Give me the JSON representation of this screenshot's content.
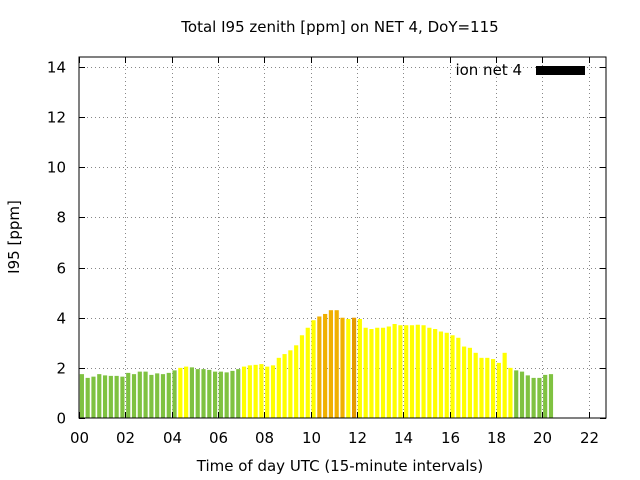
{
  "chart_data": {
    "type": "bar",
    "title": "Total I95 zenith [ppm] on NET 4, DoY=115",
    "xlabel": "Time of day UTC (15-minute intervals)",
    "ylabel": "I95 [ppm]",
    "xlim": [
      0,
      22.75
    ],
    "ylim": [
      0,
      14.4
    ],
    "xticks": [
      0,
      2,
      4,
      6,
      8,
      10,
      12,
      14,
      16,
      18,
      20,
      22
    ],
    "xtick_labels": [
      "00",
      "02",
      "04",
      "06",
      "08",
      "10",
      "12",
      "14",
      "16",
      "18",
      "20",
      "22"
    ],
    "yticks": [
      0,
      2,
      4,
      6,
      8,
      10,
      12,
      14
    ],
    "ytick_labels": [
      "0",
      "2",
      "4",
      "6",
      "8",
      "10",
      "12",
      "14"
    ],
    "grid": true,
    "legend": {
      "label": "ion net 4",
      "color": "#000000",
      "placement": "top-right"
    },
    "interval_hours": 0.25,
    "colors": {
      "G": "#7fc241",
      "Y": "#ffff00",
      "O": "#f0b000",
      "D": "#e59a00"
    },
    "values": [
      1.75,
      1.6,
      1.65,
      1.75,
      1.7,
      1.68,
      1.68,
      1.65,
      1.8,
      1.75,
      1.85,
      1.85,
      1.72,
      1.78,
      1.75,
      1.8,
      1.9,
      2.0,
      2.05,
      2.02,
      1.95,
      1.95,
      1.92,
      1.85,
      1.85,
      1.82,
      1.88,
      1.95,
      2.05,
      2.1,
      2.12,
      2.15,
      2.05,
      2.1,
      2.4,
      2.55,
      2.7,
      2.9,
      3.3,
      3.6,
      3.9,
      4.05,
      4.15,
      4.3,
      4.3,
      4.0,
      3.95,
      4.0,
      3.95,
      3.6,
      3.55,
      3.6,
      3.6,
      3.65,
      3.75,
      3.7,
      3.7,
      3.7,
      3.72,
      3.7,
      3.6,
      3.55,
      3.45,
      3.4,
      3.3,
      3.2,
      2.85,
      2.8,
      2.6,
      2.4,
      2.4,
      2.35,
      2.2,
      2.6,
      2.0,
      1.9,
      1.85,
      1.7,
      1.6,
      1.6,
      1.72,
      1.75
    ],
    "value_colors": [
      "G",
      "G",
      "G",
      "G",
      "G",
      "G",
      "G",
      "G",
      "G",
      "G",
      "G",
      "G",
      "G",
      "G",
      "G",
      "G",
      "G",
      "Y",
      "Y",
      "G",
      "G",
      "G",
      "G",
      "G",
      "G",
      "G",
      "G",
      "G",
      "Y",
      "Y",
      "Y",
      "Y",
      "Y",
      "Y",
      "Y",
      "Y",
      "Y",
      "Y",
      "Y",
      "Y",
      "Y",
      "O",
      "O",
      "O",
      "O",
      "O",
      "Y",
      "D",
      "Y",
      "Y",
      "Y",
      "Y",
      "Y",
      "Y",
      "Y",
      "Y",
      "Y",
      "Y",
      "Y",
      "Y",
      "Y",
      "Y",
      "Y",
      "Y",
      "Y",
      "Y",
      "Y",
      "Y",
      "Y",
      "Y",
      "Y",
      "Y",
      "Y",
      "Y",
      "Y",
      "G",
      "G",
      "G",
      "G",
      "G",
      "G",
      "G"
    ]
  }
}
